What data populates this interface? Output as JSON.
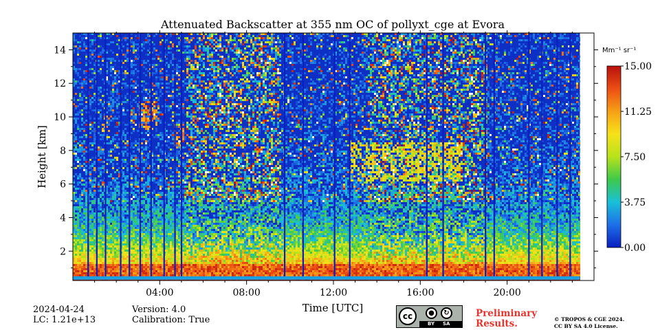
{
  "chart_data": {
    "type": "heatmap",
    "title": "Attenuated Backscatter at 355 nm OC of pollyxt_cge at Evora",
    "xlabel": "Time [UTC]",
    "ylabel": "Height [km]",
    "xlim_hours": [
      0,
      24
    ],
    "ylim_km": [
      0,
      15
    ],
    "x_ticks": [
      "04:00",
      "08:00",
      "12:00",
      "16:00",
      "20:00"
    ],
    "x_tick_hours": [
      4,
      8,
      12,
      16,
      20
    ],
    "y_ticks": [
      2,
      4,
      6,
      8,
      10,
      12,
      14
    ],
    "colorbar": {
      "unit_label": "Mm⁻¹ sr⁻¹",
      "ticks": [
        "0.00",
        "3.75",
        "7.50",
        "11.25",
        "15.00"
      ],
      "range": [
        0,
        15
      ],
      "colormap": [
        "#0a1fbf",
        "#1e6fe8",
        "#19c0d8",
        "#3ec94a",
        "#b8e21c",
        "#f6e21a",
        "#f7a016",
        "#ec4e14",
        "#b8100c"
      ]
    },
    "data_end_hour": 23.35,
    "surface_layer": {
      "top_km": 1.3,
      "peak_value": 14
    },
    "noise_high_intensity_hours": [
      [
        5.2,
        9.5
      ],
      [
        13.5,
        19.0
      ]
    ],
    "cloud_features": [
      {
        "start_hour": 1.3,
        "end_hour": 1.7,
        "base_km": 9.2,
        "top_km": 10.1,
        "value": 11
      },
      {
        "start_hour": 3.0,
        "end_hour": 3.8,
        "base_km": 9.3,
        "top_km": 11.0,
        "value": 12
      },
      {
        "start_hour": 4.6,
        "end_hour": 5.1,
        "base_km": 8.2,
        "top_km": 9.6,
        "value": 11
      },
      {
        "start_hour": 12.7,
        "end_hour": 17.9,
        "base_km": 6.2,
        "top_km": 8.6,
        "value": 9
      }
    ],
    "signal_gaps_hours": [
      0.7,
      1.1,
      1.5,
      2.2,
      2.6,
      3.1,
      3.6,
      4.2,
      4.7,
      5.0,
      9.75,
      10.6,
      12.05,
      12.75,
      16.3,
      17.05,
      19.0,
      19.4,
      21.0,
      21.6,
      22.3,
      22.9
    ]
  },
  "footer": {
    "date": "2024-04-24",
    "lc": "LC: 1.21e+13",
    "version": "Version: 4.0",
    "calibration": "Calibration: True",
    "preliminary": [
      "Preliminary",
      "Results."
    ],
    "copyright": [
      "© TROPOS & CGE 2024.",
      "CC BY SA 4.0 License."
    ],
    "cc_badge": {
      "cc": "cc",
      "by": "BY",
      "sa": "SA"
    }
  }
}
